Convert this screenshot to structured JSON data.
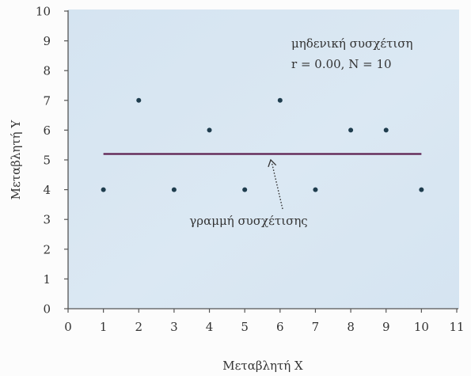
{
  "chart_data": {
    "type": "scatter",
    "xlabel": "Μεταβλητή X",
    "ylabel": "Μεταβλητή Y",
    "xlim": [
      0,
      11
    ],
    "ylim": [
      0,
      10
    ],
    "xticks": [
      "0",
      "1",
      "2",
      "3",
      "4",
      "5",
      "6",
      "7",
      "8",
      "9",
      "10",
      "11"
    ],
    "yticks": [
      "0",
      "1",
      "2",
      "3",
      "4",
      "5",
      "6",
      "7",
      "8",
      "9",
      "10"
    ],
    "grid": false,
    "points": {
      "x": [
        1,
        2,
        3,
        4,
        5,
        6,
        7,
        8,
        9,
        10
      ],
      "y": [
        4,
        7,
        4,
        6,
        4,
        7,
        4,
        6,
        6,
        4
      ]
    },
    "trend_line": {
      "x": [
        1,
        10
      ],
      "y": [
        5.2,
        5.2
      ]
    },
    "annotations": [
      "μηδενική συσχέτιση",
      "r = 0.00, N = 10",
      "γραμμή συσχέτισης"
    ]
  },
  "colors": {
    "plot_background": "#d5e4f1",
    "points": "#1f3d4e",
    "line": "#5c1e4e",
    "axis": "#555555",
    "arrow": "#333333"
  }
}
